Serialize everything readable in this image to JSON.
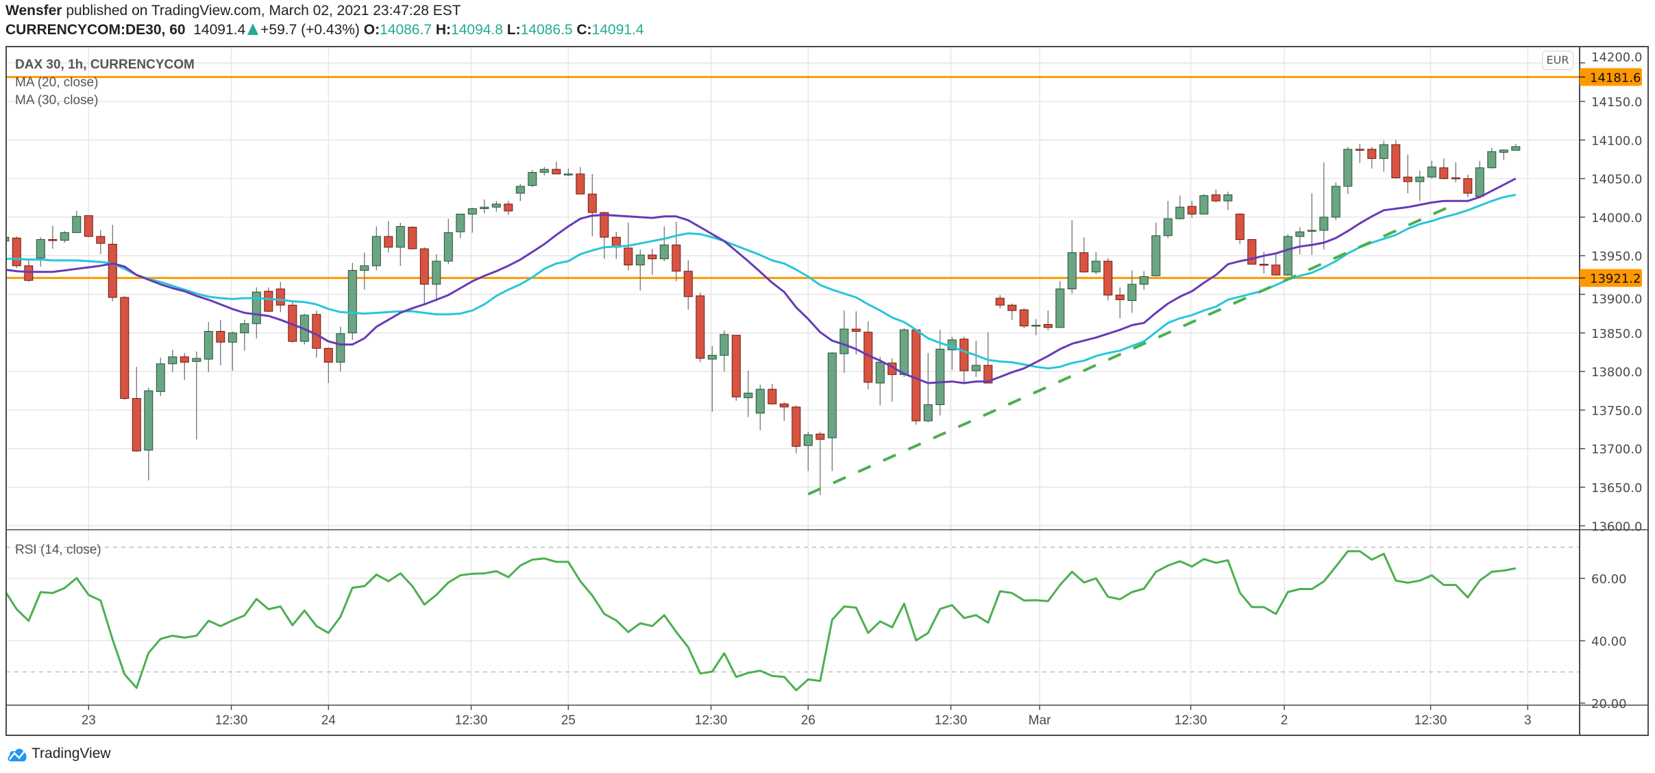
{
  "header": {
    "author": "Wensfer",
    "published_text": "published on TradingView.com, March 02, 2021 23:47:28 EST",
    "symbol": "CURRENCYCOM:DE30, 60",
    "last": "14091.4",
    "change": "+59.7 (+0.43%)",
    "o_label": "O:",
    "o": "14086.7",
    "h_label": "H:",
    "h": "14094.8",
    "l_label": "L:",
    "l": "14086.5",
    "c_label": "C:",
    "c": "14091.4"
  },
  "legend": {
    "title": "DAX 30, 1h, CURRENCYCOM",
    "ma20": "MA (20, close)",
    "ma30": "MA (30, close)",
    "rsi": "RSI (14, close)"
  },
  "currency_badge": "EUR",
  "footer": {
    "brand": "TradingView"
  },
  "colors": {
    "up": "#6ba583",
    "up_border": "#225437",
    "down": "#d75442",
    "down_border": "#6f1a10",
    "wick": "#737375",
    "ma20": "#673ab7",
    "ma30": "#26c6da",
    "rsi": "#4caf50",
    "trend": "#4caf50",
    "level": "#ff9800"
  },
  "chart_data": {
    "type": "candlestick",
    "title": "DAX 30, 1h, CURRENCYCOM",
    "ylim": [
      13600,
      14200
    ],
    "price_ticks": [
      "14200.0",
      "14150.0",
      "14100.0",
      "14050.0",
      "14000.0",
      "13950.0",
      "13900.0",
      "13850.0",
      "13800.0",
      "13750.0",
      "13700.0",
      "13650.0",
      "13600.0"
    ],
    "x_labels": [
      {
        "label": "23",
        "bar": 7
      },
      {
        "label": "12:30",
        "bar": 18.9
      },
      {
        "label": "24",
        "bar": 27
      },
      {
        "label": "12:30",
        "bar": 38.9
      },
      {
        "label": "25",
        "bar": 47
      },
      {
        "label": "12:30",
        "bar": 58.9
      },
      {
        "label": "26",
        "bar": 67
      },
      {
        "label": "12:30",
        "bar": 78.9
      },
      {
        "label": "Mar",
        "bar": 86.3
      },
      {
        "label": "12:30",
        "bar": 98.9
      },
      {
        "label": "2",
        "bar": 106.7
      },
      {
        "label": "12:30",
        "bar": 118.9
      },
      {
        "label": "3",
        "bar": 127
      }
    ],
    "levels": [
      {
        "price": 14181.6,
        "label": "14181.6"
      },
      {
        "price": 13921.2,
        "label": "13921.2"
      }
    ],
    "trendline": {
      "from": {
        "bar": 67,
        "price": 13641
      },
      "to": {
        "bar": 120.4,
        "price": 14013
      }
    },
    "ohlc": [
      [
        13969,
        13976,
        13965,
        13974
      ],
      [
        13973,
        13975,
        13934,
        13937
      ],
      [
        13937,
        13946,
        13916,
        13918
      ],
      [
        13947,
        13974,
        13936,
        13971
      ],
      [
        13971,
        13989,
        13959,
        13970
      ],
      [
        13970,
        13982,
        13967,
        13980
      ],
      [
        13980,
        14008,
        13980,
        14001
      ],
      [
        14002,
        14002,
        13974,
        13975
      ],
      [
        13975,
        13983,
        13952,
        13966
      ],
      [
        13965,
        13990,
        13891,
        13896
      ],
      [
        13896,
        13898,
        13763,
        13765
      ],
      [
        13765,
        13806,
        13696,
        13697
      ],
      [
        13698,
        13779,
        13659,
        13775
      ],
      [
        13774,
        13818,
        13768,
        13810
      ],
      [
        13810,
        13828,
        13799,
        13819
      ],
      [
        13819,
        13824,
        13789,
        13812
      ],
      [
        13813,
        13826,
        13712,
        13817
      ],
      [
        13816,
        13864,
        13799,
        13852
      ],
      [
        13852,
        13867,
        13808,
        13838
      ],
      [
        13838,
        13852,
        13801,
        13850
      ],
      [
        13850,
        13867,
        13827,
        13862
      ],
      [
        13862,
        13909,
        13843,
        13903
      ],
      [
        13904,
        13909,
        13877,
        13878
      ],
      [
        13907,
        13916,
        13877,
        13886
      ],
      [
        13886,
        13890,
        13837,
        13839
      ],
      [
        13839,
        13875,
        13835,
        13873
      ],
      [
        13874,
        13879,
        13818,
        13830
      ],
      [
        13830,
        13831,
        13785,
        13812
      ],
      [
        13812,
        13858,
        13800,
        13849
      ],
      [
        13850,
        13941,
        13841,
        13931
      ],
      [
        13931,
        13954,
        13906,
        13937
      ],
      [
        13937,
        13988,
        13931,
        13975
      ],
      [
        13975,
        13995,
        13954,
        13961
      ],
      [
        13961,
        13993,
        13937,
        13988
      ],
      [
        13987,
        13988,
        13958,
        13959
      ],
      [
        13959,
        13961,
        13888,
        13913
      ],
      [
        13913,
        13952,
        13891,
        13943
      ],
      [
        13943,
        13998,
        13939,
        13980
      ],
      [
        13981,
        14004,
        13973,
        14004
      ],
      [
        14004,
        14012,
        13980,
        14011
      ],
      [
        14011,
        14023,
        14005,
        14013
      ],
      [
        14013,
        14021,
        14007,
        14017
      ],
      [
        14017,
        14021,
        14003,
        14008
      ],
      [
        14031,
        14043,
        14021,
        14040
      ],
      [
        14041,
        14061,
        14039,
        14058
      ],
      [
        14058,
        14065,
        14054,
        14062
      ],
      [
        14062,
        14072,
        14056,
        14056
      ],
      [
        14056,
        14063,
        14053,
        14056
      ],
      [
        14056,
        14065,
        14030,
        14030
      ],
      [
        14030,
        14056,
        13975,
        14006
      ],
      [
        14006,
        14007,
        13946,
        13974
      ],
      [
        13974,
        13981,
        13946,
        13961
      ],
      [
        13960,
        13993,
        13931,
        13938
      ],
      [
        13938,
        13958,
        13905,
        13951
      ],
      [
        13951,
        13959,
        13925,
        13946
      ],
      [
        13946,
        13988,
        13943,
        13964
      ],
      [
        13964,
        13994,
        13917,
        13930
      ],
      [
        13930,
        13944,
        13880,
        13897
      ],
      [
        13898,
        13902,
        13812,
        13817
      ],
      [
        13816,
        13833,
        13748,
        13821
      ],
      [
        13821,
        13853,
        13800,
        13848
      ],
      [
        13847,
        13847,
        13762,
        13767
      ],
      [
        13766,
        13801,
        13741,
        13772
      ],
      [
        13746,
        13783,
        13724,
        13777
      ],
      [
        13777,
        13784,
        13757,
        13758
      ],
      [
        13758,
        13760,
        13736,
        13754
      ],
      [
        13754,
        13756,
        13694,
        13703
      ],
      [
        13704,
        13722,
        13671,
        13718
      ],
      [
        13719,
        13722,
        13640,
        13712
      ],
      [
        13714,
        13825,
        13671,
        13824
      ],
      [
        13823,
        13879,
        13798,
        13855
      ],
      [
        13855,
        13878,
        13822,
        13852
      ],
      [
        13851,
        13865,
        13777,
        13786
      ],
      [
        13785,
        13819,
        13756,
        13812
      ],
      [
        13811,
        13817,
        13761,
        13796
      ],
      [
        13796,
        13856,
        13793,
        13854
      ],
      [
        13854,
        13855,
        13731,
        13736
      ],
      [
        13736,
        13824,
        13734,
        13757
      ],
      [
        13757,
        13854,
        13743,
        13829
      ],
      [
        13828,
        13845,
        13802,
        13841
      ],
      [
        13842,
        13845,
        13786,
        13801
      ],
      [
        13801,
        13840,
        13793,
        13808
      ],
      [
        13808,
        13851,
        13785,
        13785
      ],
      [
        13895,
        13899,
        13882,
        13886
      ],
      [
        13886,
        13888,
        13867,
        13879
      ],
      [
        13880,
        13882,
        13856,
        13859
      ],
      [
        13860,
        13868,
        13847,
        13860
      ],
      [
        13861,
        13879,
        13853,
        13857
      ],
      [
        13857,
        13917,
        13857,
        13907
      ],
      [
        13907,
        13996,
        13901,
        13954
      ],
      [
        13954,
        13974,
        13928,
        13929
      ],
      [
        13929,
        13955,
        13926,
        13943
      ],
      [
        13943,
        13947,
        13892,
        13899
      ],
      [
        13899,
        13909,
        13869,
        13893
      ],
      [
        13892,
        13931,
        13876,
        13913
      ],
      [
        13913,
        13930,
        13906,
        13923
      ],
      [
        13924,
        13993,
        13923,
        13976
      ],
      [
        13976,
        14021,
        13973,
        13998
      ],
      [
        13998,
        14028,
        13997,
        14013
      ],
      [
        14014,
        14021,
        13999,
        14004
      ],
      [
        14004,
        14030,
        14004,
        14028
      ],
      [
        14029,
        14036,
        14019,
        14021
      ],
      [
        14021,
        14033,
        14009,
        14029
      ],
      [
        14004,
        14005,
        13965,
        13971
      ],
      [
        13971,
        13971,
        13939,
        13939
      ],
      [
        13939,
        13955,
        13927,
        13938.9
      ],
      [
        13938,
        13952,
        13924,
        13925
      ],
      [
        13925,
        13978,
        13924,
        13975
      ],
      [
        13975,
        13987,
        13952,
        13981
      ],
      [
        13983,
        14031,
        13951,
        13983
      ],
      [
        13983,
        14071,
        13958,
        14000
      ],
      [
        14000,
        14045,
        13996,
        14040
      ],
      [
        14040,
        14091,
        14030,
        14088
      ],
      [
        14088,
        14095,
        14070,
        14087.9
      ],
      [
        14088,
        14091,
        14063,
        14076
      ],
      [
        14076,
        14099,
        14059,
        14094
      ],
      [
        14094,
        14100,
        14050,
        14051
      ],
      [
        14052,
        14081,
        14031,
        14046
      ],
      [
        14046,
        14060,
        14021,
        14052
      ],
      [
        14052,
        14073,
        14050,
        14065
      ],
      [
        14064,
        14076,
        14049,
        14050
      ],
      [
        14051,
        14071,
        14045,
        14050.9
      ],
      [
        14050,
        14055,
        14026,
        14031
      ],
      [
        14027,
        14073,
        14027,
        14064
      ],
      [
        14064,
        14090,
        14063,
        14085
      ],
      [
        14084,
        14088,
        14074,
        14087
      ],
      [
        14086.7,
        14094.8,
        14086.5,
        14091.4
      ]
    ],
    "ma20": [
      13932,
      13930,
      13929,
      13929,
      13929,
      13931,
      13933,
      13935,
      13937,
      13940,
      13936,
      13925,
      13919,
      13913,
      13908,
      13904,
      13898,
      13893,
      13887,
      13881,
      13876,
      13874,
      13872,
      13867,
      13861,
      13855,
      13848,
      13839,
      13835,
      13835,
      13843,
      13858,
      13867,
      13876,
      13882,
      13887,
      13893,
      13899,
      13908,
      13917,
      13924,
      13930,
      13937,
      13945,
      13955,
      13965,
      13977,
      13988,
      13998,
      14002,
      14003,
      14002,
      14001,
      14000,
      13999,
      14001,
      14001,
      13996,
      13987,
      13978,
      13969,
      13956,
      13943,
      13929,
      13915,
      13903,
      13883,
      13868,
      13851,
      13840,
      13835,
      13829,
      13821,
      13814,
      13806,
      13797,
      13791,
      13785,
      13786,
      13787,
      13785,
      13787,
      13787,
      13793,
      13799,
      13804,
      13812,
      13820,
      13829,
      13836,
      13840,
      13844,
      13849,
      13854,
      13860,
      13863,
      13876,
      13888,
      13897,
      13904,
      13915,
      13925,
      13939,
      13943,
      13946,
      13950,
      13953,
      13958,
      13962,
      13964,
      13967,
      13973,
      13982,
      13992,
      14001,
      14009,
      14011,
      14013,
      14016,
      14019,
      14021,
      14021,
      14021,
      14026,
      14034,
      14042,
      14050
    ],
    "ma30": [
      13946,
      13946,
      13945,
      13945,
      13944,
      13944,
      13944,
      13943,
      13942,
      13940,
      13933,
      13925,
      13920,
      13916,
      13911,
      13906,
      13901,
      13897,
      13895,
      13894,
      13895,
      13895,
      13894,
      13893,
      13891,
      13890,
      13887,
      13881,
      13877,
      13876,
      13875,
      13876,
      13877,
      13878,
      13878,
      13876,
      13874,
      13874,
      13875,
      13879,
      13887,
      13898,
      13906,
      13913,
      13922,
      13933,
      13940,
      13943,
      13952,
      13957,
      13961,
      13962,
      13963,
      13966,
      13969,
      13972,
      13976,
      13979,
      13978,
      13974,
      13969,
      13963,
      13957,
      13951,
      13944,
      13940,
      13932,
      13923,
      13912,
      13906,
      13901,
      13896,
      13887,
      13879,
      13870,
      13864,
      13854,
      13843,
      13837,
      13832,
      13826,
      13821,
      13815,
      13813,
      13812,
      13809,
      13806,
      13804,
      13806,
      13811,
      13814,
      13820,
      13824,
      13827,
      13833,
      13839,
      13851,
      13863,
      13869,
      13873,
      13879,
      13884,
      13893,
      13897,
      13901,
      13905,
      13912,
      13919,
      13924,
      13928,
      13935,
      13943,
      13953,
      13961,
      13967,
      13972,
      13977,
      13985,
      13991,
      13995,
      14000,
      14004,
      14009,
      14015,
      14021,
      14026,
      14029
    ],
    "rsi": {
      "ylim": [
        17,
        75
      ],
      "bands": [
        70,
        30
      ],
      "ticks": [
        "60.00",
        "40.00",
        "20.00"
      ],
      "values": [
        56.1,
        50.1,
        46.4,
        55.6,
        55.3,
        56.9,
        60.1,
        54.7,
        52.9,
        40.4,
        29.2,
        24.9,
        36.1,
        40.6,
        41.6,
        41.0,
        41.6,
        46.4,
        44.7,
        46.5,
        48.1,
        53.4,
        50.1,
        51.0,
        45.0,
        49.7,
        44.7,
        42.5,
        47.7,
        57.0,
        57.5,
        61.2,
        59.1,
        61.6,
        57.5,
        51.6,
        54.7,
        58.7,
        61.0,
        61.5,
        61.6,
        62.3,
        60.4,
        64.1,
        66.0,
        66.4,
        65.3,
        65.3,
        59.1,
        54.5,
        48.6,
        46.5,
        42.8,
        45.6,
        44.7,
        48.2,
        42.8,
        37.9,
        29.5,
        30.1,
        36.0,
        28.4,
        29.7,
        30.4,
        28.7,
        28.4,
        24.1,
        27.6,
        27.1,
        46.7,
        51.0,
        50.6,
        42.5,
        46.2,
        44.3,
        51.9,
        40.1,
        42.5,
        50.2,
        51.4,
        47.3,
        48.2,
        45.8,
        55.9,
        55.3,
        52.9,
        53.0,
        52.7,
        57.9,
        62.1,
        58.7,
        60.0,
        54.1,
        53.3,
        55.6,
        56.7,
        62.1,
        64.1,
        65.5,
        63.8,
        66.2,
        65.0,
        65.8,
        55.4,
        50.8,
        50.8,
        48.6,
        55.6,
        56.6,
        56.6,
        59.0,
        63.8,
        68.7,
        68.7,
        66.0,
        67.9,
        59.3,
        58.6,
        59.3,
        61.0,
        57.9,
        57.9,
        53.9,
        59.3,
        62.1,
        62.5,
        63.2
      ]
    }
  }
}
